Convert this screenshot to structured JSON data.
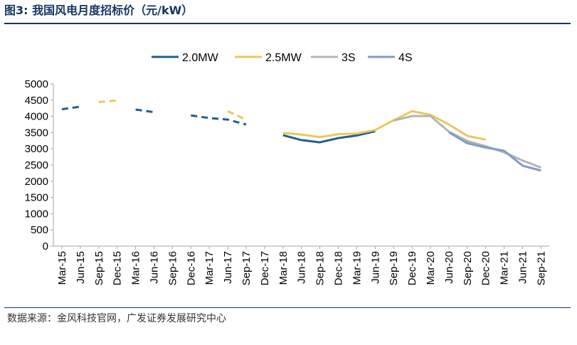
{
  "header": {
    "title": "图3:  我国风电月度招标价（元/kW）"
  },
  "footer": {
    "source": "数据来源：金风科技官网，广发证券发展研究中心"
  },
  "chart_data": {
    "type": "line",
    "categories": [
      "Mar-15",
      "Jun-15",
      "Sep-15",
      "Dec-15",
      "Mar-16",
      "Jun-16",
      "Sep-16",
      "Dec-16",
      "Mar-17",
      "Jun-17",
      "Sep-17",
      "Dec-17",
      "Mar-18",
      "Jun-18",
      "Sep-18",
      "Dec-18",
      "Mar-19",
      "Jun-19",
      "Sep-19",
      "Dec-19",
      "Mar-20",
      "Jun-20",
      "Sep-20",
      "Dec-20",
      "Mar-21",
      "Jun-21",
      "Sep-21"
    ],
    "ylim": [
      0,
      5000
    ],
    "yticks": [
      0,
      500,
      1000,
      1500,
      2000,
      2500,
      3000,
      3500,
      4000,
      4500,
      5000
    ],
    "legend_position": "top",
    "grid": false,
    "series": [
      {
        "name": "2.0MW",
        "color": "#1f5f93",
        "dashed": true,
        "values": [
          4220,
          4300,
          null,
          null,
          4210,
          4130,
          null,
          4030,
          3950,
          3900,
          3750,
          null,
          null,
          null,
          null,
          null,
          null,
          null,
          null,
          null,
          null,
          null,
          null,
          null,
          null,
          null,
          null
        ]
      },
      {
        "name": "2.0MW",
        "color": "#1f5f93",
        "dashed": false,
        "values": [
          null,
          null,
          null,
          null,
          null,
          null,
          null,
          null,
          null,
          null,
          null,
          null,
          3420,
          3270,
          3200,
          3330,
          3410,
          3540,
          null,
          null,
          null,
          null,
          null,
          null,
          null,
          null,
          null
        ]
      },
      {
        "name": "2.5MW",
        "color": "#e8c85a",
        "dashed": true,
        "values": [
          null,
          null,
          4440,
          4490,
          null,
          null,
          null,
          null,
          null,
          4160,
          3900,
          null,
          null,
          null,
          null,
          null,
          null,
          null,
          null,
          null,
          null,
          null,
          null,
          null,
          null,
          null,
          null
        ]
      },
      {
        "name": "2.5MW",
        "color": "#e8c85a",
        "dashed": false,
        "values": [
          null,
          null,
          null,
          null,
          null,
          null,
          null,
          null,
          null,
          null,
          null,
          null,
          3490,
          3440,
          3360,
          3450,
          3470,
          3580,
          3880,
          4160,
          4050,
          3750,
          3400,
          3280,
          null,
          null,
          null
        ]
      },
      {
        "name": "3S",
        "color": "#b4b4b4",
        "dashed": false,
        "values": [
          null,
          null,
          null,
          null,
          null,
          null,
          null,
          null,
          null,
          null,
          null,
          null,
          null,
          null,
          null,
          null,
          null,
          null,
          3870,
          4010,
          4010,
          3530,
          3240,
          3080,
          2890,
          2640,
          2420
        ]
      },
      {
        "name": "4S",
        "color": "#7f9cc5",
        "dashed": false,
        "values": [
          null,
          null,
          null,
          null,
          null,
          null,
          null,
          null,
          null,
          null,
          null,
          null,
          null,
          null,
          null,
          null,
          null,
          null,
          null,
          null,
          null,
          3510,
          3170,
          3040,
          2940,
          2480,
          2330
        ]
      }
    ],
    "legend": [
      {
        "name": "2.0MW",
        "color": "#1f5f93"
      },
      {
        "name": "2.5MW",
        "color": "#e8c85a"
      },
      {
        "name": "3S",
        "color": "#b4b4b4"
      },
      {
        "name": "4S",
        "color": "#7f9cc5"
      }
    ]
  }
}
